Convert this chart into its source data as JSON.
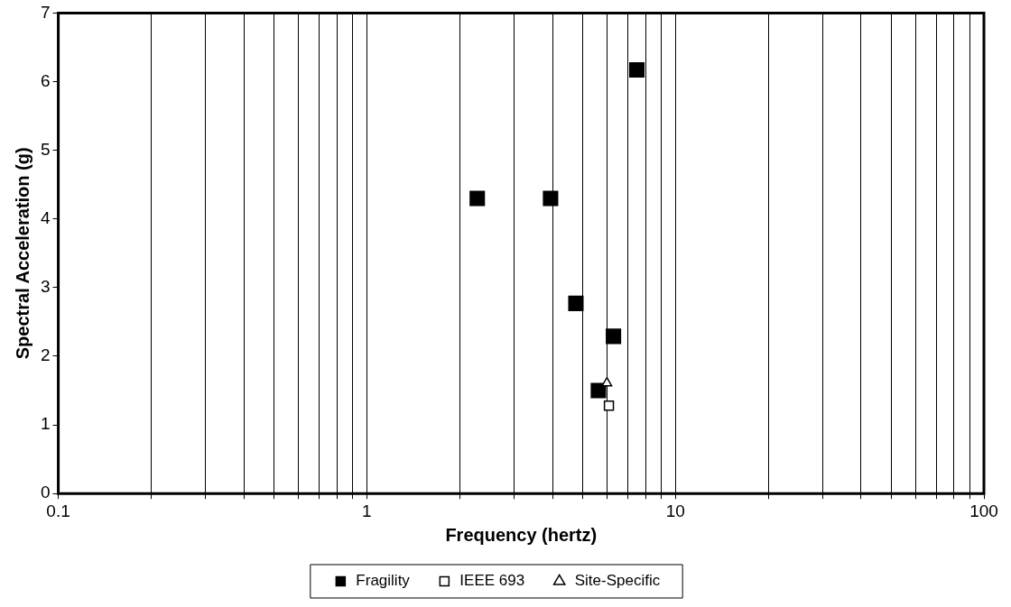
{
  "chart_data": {
    "type": "scatter",
    "xlabel": "Frequency (hertz)",
    "ylabel": "Spectral Acceleration (g)",
    "log": "x",
    "xlim": [
      0.1,
      100
    ],
    "ylim": [
      0,
      7
    ],
    "xticks": [
      0.1,
      {
        "value": 0.2,
        "label": null
      },
      {
        "value": 0.3,
        "label": null
      },
      {
        "value": 0.4,
        "label": null
      },
      {
        "value": 0.5,
        "label": null
      },
      {
        "value": 0.6,
        "label": null
      },
      {
        "value": 0.7,
        "label": null
      },
      {
        "value": 0.8,
        "label": null
      },
      {
        "value": 0.9,
        "label": null
      },
      1,
      {
        "value": 2,
        "label": null
      },
      {
        "value": 3,
        "label": null
      },
      {
        "value": 4,
        "label": null
      },
      {
        "value": 5,
        "label": null
      },
      {
        "value": 6,
        "label": null
      },
      {
        "value": 7,
        "label": null
      },
      {
        "value": 8,
        "label": null
      },
      {
        "value": 9,
        "label": null
      },
      10,
      {
        "value": 20,
        "label": null
      },
      {
        "value": 30,
        "label": null
      },
      {
        "value": 40,
        "label": null
      },
      {
        "value": 50,
        "label": null
      },
      {
        "value": 60,
        "label": null
      },
      {
        "value": 70,
        "label": null
      },
      {
        "value": 80,
        "label": null
      },
      {
        "value": 90,
        "label": null
      },
      100
    ],
    "yticks": [
      0,
      1,
      2,
      3,
      4,
      5,
      6,
      7
    ],
    "grid": "x",
    "legend": "bottom",
    "series": [
      {
        "name": "Fragility",
        "color": "#000000",
        "marker": "square",
        "x": [
          2.28,
          3.94,
          4.76,
          6.3,
          5.63,
          7.5
        ],
        "values": [
          4.3,
          4.3,
          2.77,
          2.29,
          1.5,
          6.17
        ]
      },
      {
        "name": "IEEE 693",
        "color": "#ffffff",
        "marker": "square",
        "x": [
          6.09
        ],
        "values": [
          1.28
        ]
      },
      {
        "name": "Site-Specific",
        "color": "#ffffff",
        "marker": "triangle",
        "x": [
          6.0
        ],
        "values": [
          1.61
        ]
      }
    ]
  }
}
